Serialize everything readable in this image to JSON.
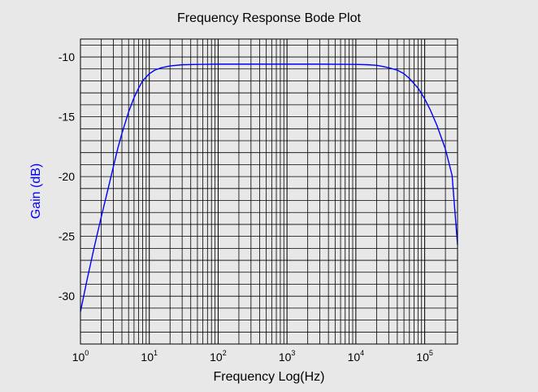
{
  "chart_data": {
    "type": "line",
    "title": "Frequency Response Bode Plot",
    "xlabel": "Frequency Log(Hz)",
    "ylabel": "Gain (dB)",
    "x_scale": "log",
    "xlim": [
      1,
      300000
    ],
    "ylim": [
      -34,
      -8.5
    ],
    "grid": true,
    "legend": "none",
    "x_ticks": [
      {
        "base": "10",
        "exp": "0",
        "value": 1
      },
      {
        "base": "10",
        "exp": "1",
        "value": 10
      },
      {
        "base": "10",
        "exp": "2",
        "value": 100
      },
      {
        "base": "10",
        "exp": "3",
        "value": 1000
      },
      {
        "base": "10",
        "exp": "4",
        "value": 10000
      },
      {
        "base": "10",
        "exp": "5",
        "value": 100000
      }
    ],
    "y_ticks": [
      {
        "label": "-10",
        "value": -10
      },
      {
        "label": "-15",
        "value": -15
      },
      {
        "label": "-20",
        "value": -20
      },
      {
        "label": "-25",
        "value": -25
      },
      {
        "label": "-30",
        "value": -30
      }
    ],
    "series": [
      {
        "color": "#0000ff",
        "x": [
          1,
          1.25,
          1.6,
          2,
          2.5,
          3,
          3.5,
          4,
          5,
          6,
          7,
          8,
          10,
          12,
          15,
          20,
          30,
          50,
          100,
          300,
          1000,
          3000,
          10000,
          15000,
          20000,
          25000,
          30000,
          40000,
          50000,
          60000,
          80000,
          100000,
          120000,
          150000,
          200000,
          250000,
          300000
        ],
        "y": [
          -31.3,
          -28.6,
          -25.8,
          -23.4,
          -21.1,
          -19.2,
          -17.6,
          -16.4,
          -14.6,
          -13.4,
          -12.6,
          -12.0,
          -11.4,
          -11.1,
          -10.9,
          -10.75,
          -10.65,
          -10.62,
          -10.6,
          -10.6,
          -10.6,
          -10.6,
          -10.62,
          -10.65,
          -10.7,
          -10.8,
          -10.9,
          -11.1,
          -11.4,
          -11.8,
          -12.6,
          -13.5,
          -14.4,
          -15.7,
          -17.7,
          -19.9,
          -25.7
        ]
      }
    ]
  }
}
